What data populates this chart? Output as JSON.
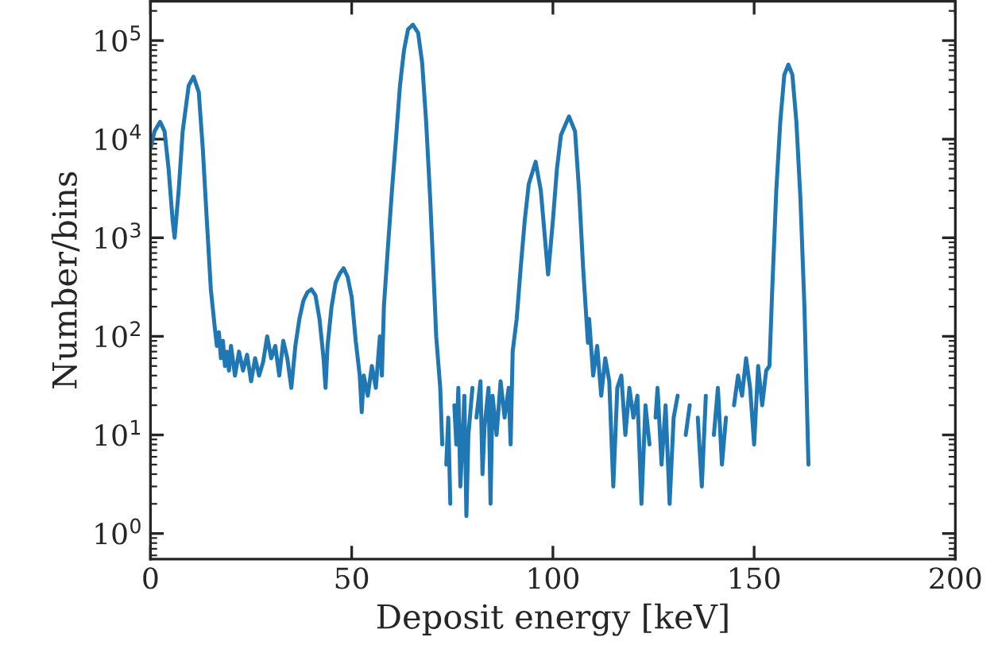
{
  "chart_data": {
    "type": "line",
    "xlabel": "Deposit energy [keV]",
    "ylabel": "Number/bins",
    "log": "y",
    "grid": false,
    "legend": false,
    "line_style": "solid",
    "marker": "none",
    "xlim": [
      0,
      200
    ],
    "xticks": [
      0,
      50,
      100,
      150,
      200
    ],
    "ylim": [
      0.55,
      250000
    ],
    "yticks": [
      {
        "value": 1,
        "label": "10$^{0}$"
      },
      {
        "value": 10,
        "label": "10$^{1}$"
      },
      {
        "value": 100,
        "label": "10$^{2}$"
      },
      {
        "value": 1000,
        "label": "10$^{3}$"
      },
      {
        "value": 10000,
        "label": "10$^{4}$"
      },
      {
        "value": 100000,
        "label": "10$^{5}$"
      }
    ],
    "series": [
      {
        "color": "#1f77b4",
        "x": [
          0,
          1,
          2.4,
          3.5,
          4.5,
          5.5,
          6,
          7,
          8,
          9.5,
          10.7,
          12,
          13,
          14,
          15,
          16,
          16.5,
          17,
          17.5,
          18,
          18.5,
          19,
          19.5,
          20,
          21,
          22,
          23,
          24,
          25,
          26,
          27,
          28,
          29,
          30,
          31,
          32,
          33,
          34,
          35,
          36,
          37,
          38,
          39,
          40,
          41,
          42,
          43,
          43.5,
          44,
          45,
          46,
          47,
          48,
          49,
          50,
          51,
          52,
          52.5,
          53,
          54,
          55,
          56,
          57,
          57.5,
          58,
          59,
          60,
          61,
          62,
          63,
          64,
          65.2,
          66.5,
          67.5,
          68.5,
          69.5,
          70.5,
          71,
          72,
          72.5,
          73,
          73.5,
          74,
          74.5,
          75,
          75.5,
          76,
          76.5,
          77,
          78,
          78.5,
          79,
          80,
          80.5,
          81,
          82,
          82.5,
          83,
          84,
          84.5,
          85,
          86,
          87,
          88,
          89,
          89.5,
          90,
          91,
          92,
          93,
          94,
          95.7,
          97,
          98.8,
          100,
          101,
          102,
          104,
          105.5,
          106.5,
          107.5,
          108.7,
          109,
          110,
          111,
          112,
          113,
          114,
          115,
          116,
          117,
          118,
          119,
          120,
          121,
          122,
          123,
          124,
          125,
          125.5,
          126,
          127,
          128,
          129,
          130,
          131,
          132,
          133,
          134,
          135,
          136,
          137,
          138,
          139,
          140,
          141,
          142,
          143,
          144,
          145,
          146,
          147,
          148,
          149,
          150,
          151,
          152,
          153,
          153.8,
          154.5,
          155.5,
          156.5,
          157.5,
          158.5,
          159.5,
          160.5,
          161.5,
          162.5,
          163.5
        ],
        "values": [
          8000,
          12000,
          15000,
          12000,
          5000,
          1500,
          1000,
          3000,
          12000,
          35000,
          43000,
          30000,
          8000,
          1500,
          300,
          120,
          80,
          110,
          60,
          90,
          50,
          70,
          45,
          80,
          40,
          70,
          45,
          65,
          35,
          60,
          40,
          55,
          100,
          60,
          80,
          40,
          90,
          60,
          30,
          80,
          150,
          230,
          280,
          300,
          260,
          150,
          60,
          30,
          80,
          200,
          350,
          430,
          490,
          400,
          250,
          90,
          40,
          17,
          40,
          25,
          50,
          30,
          100,
          40,
          200,
          800,
          3000,
          10000,
          35000,
          80000,
          130000,
          145000,
          120000,
          60000,
          15000,
          2500,
          300,
          100,
          30,
          8,
          null,
          5,
          15,
          2,
          null,
          20,
          8,
          30,
          3,
          25,
          1.5,
          10,
          30,
          null,
          15,
          35,
          4,
          12,
          30,
          2,
          25,
          10,
          35,
          15,
          30,
          8,
          70,
          150,
          500,
          1500,
          3500,
          5900,
          3000,
          425,
          1500,
          5000,
          11000,
          17000,
          12000,
          3000,
          500,
          86,
          150,
          40,
          80,
          25,
          60,
          35,
          3,
          30,
          40,
          10,
          30,
          15,
          25,
          2,
          20,
          8,
          null,
          15,
          30,
          5,
          20,
          2,
          15,
          25,
          null,
          10,
          20,
          null,
          15,
          3,
          25,
          null,
          10,
          30,
          5,
          15,
          null,
          20,
          40,
          25,
          60,
          30,
          8,
          50,
          20,
          45,
          50,
          300,
          3000,
          15000,
          45000,
          57000,
          45000,
          15000,
          2500,
          200,
          5
        ]
      }
    ]
  }
}
